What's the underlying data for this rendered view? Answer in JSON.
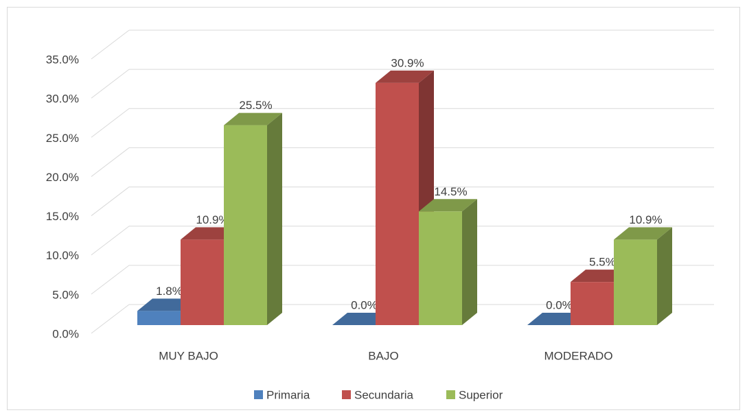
{
  "chart_data": {
    "type": "bar3d",
    "categories": [
      "MUY BAJO",
      "BAJO",
      "MODERADO"
    ],
    "series": [
      {
        "name": "Primaria",
        "color": "#4f81bd",
        "values": [
          1.8,
          0.0,
          0.0
        ],
        "value_labels": [
          "1.8%",
          "0.0%",
          "0.0%"
        ]
      },
      {
        "name": "Secundaria",
        "color": "#c0504d",
        "values": [
          10.9,
          30.9,
          5.5
        ],
        "value_labels": [
          "10.9%",
          "30.9%",
          "5.5%"
        ]
      },
      {
        "name": "Superior",
        "color": "#9bbb59",
        "values": [
          25.5,
          14.5,
          10.9
        ],
        "value_labels": [
          "25.5%",
          "14.5%",
          "10.9%"
        ]
      }
    ],
    "ylim": [
      0,
      35
    ],
    "yticks": [
      {
        "value": 0,
        "label": "0.0%"
      },
      {
        "value": 5,
        "label": "5.0%"
      },
      {
        "value": 10,
        "label": "10.0%"
      },
      {
        "value": 15,
        "label": "15.0%"
      },
      {
        "value": 20,
        "label": "20.0%"
      },
      {
        "value": 25,
        "label": "25.0%"
      },
      {
        "value": 30,
        "label": "30.0%"
      },
      {
        "value": 35,
        "label": "35.0%"
      }
    ],
    "grid": true,
    "legend": "bottom"
  }
}
